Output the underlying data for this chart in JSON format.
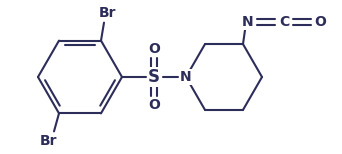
{
  "bg_color": "#ffffff",
  "line_color": "#2d2d5a",
  "lw": 1.5,
  "figsize": [
    3.42,
    1.54
  ],
  "dpi": 100,
  "xlim": [
    0,
    342
  ],
  "ylim": [
    0,
    154
  ]
}
